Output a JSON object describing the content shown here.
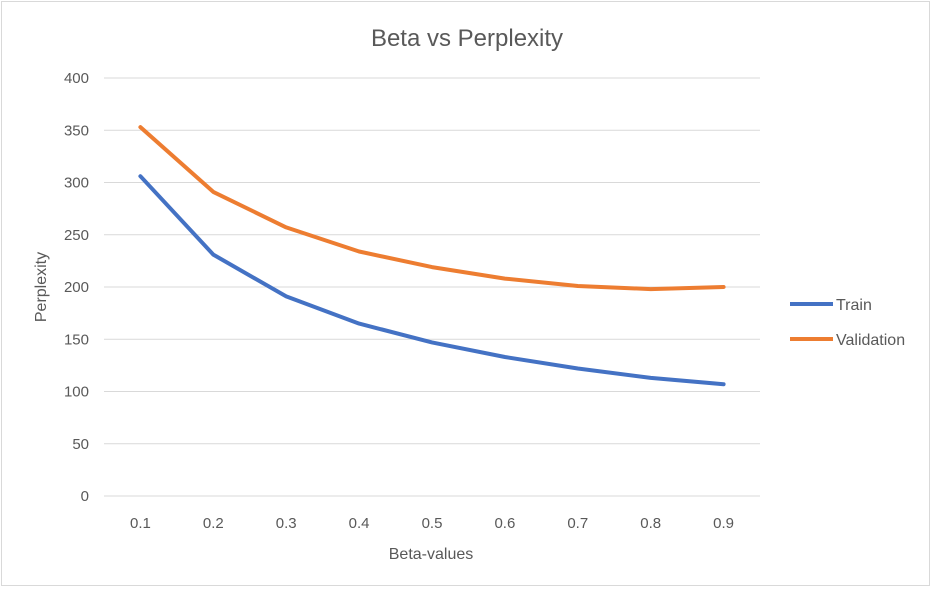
{
  "chart_data": {
    "type": "line",
    "title": "Beta vs Perplexity",
    "xlabel": "Beta-values",
    "ylabel": "Perplexity",
    "categories": [
      "0.1",
      "0.2",
      "0.3",
      "0.4",
      "0.5",
      "0.6",
      "0.7",
      "0.8",
      "0.9"
    ],
    "ylim": [
      0,
      400
    ],
    "yticks": [
      0,
      50,
      100,
      150,
      200,
      250,
      300,
      350,
      400
    ],
    "grid": true,
    "legend": "right",
    "series": [
      {
        "name": "Train",
        "color": "#4472c4",
        "values": [
          306,
          231,
          191,
          165,
          147,
          133,
          122,
          113,
          107
        ]
      },
      {
        "name": "Validation",
        "color": "#ed7d31",
        "values": [
          353,
          291,
          257,
          234,
          219,
          208,
          201,
          198,
          200
        ]
      }
    ]
  }
}
